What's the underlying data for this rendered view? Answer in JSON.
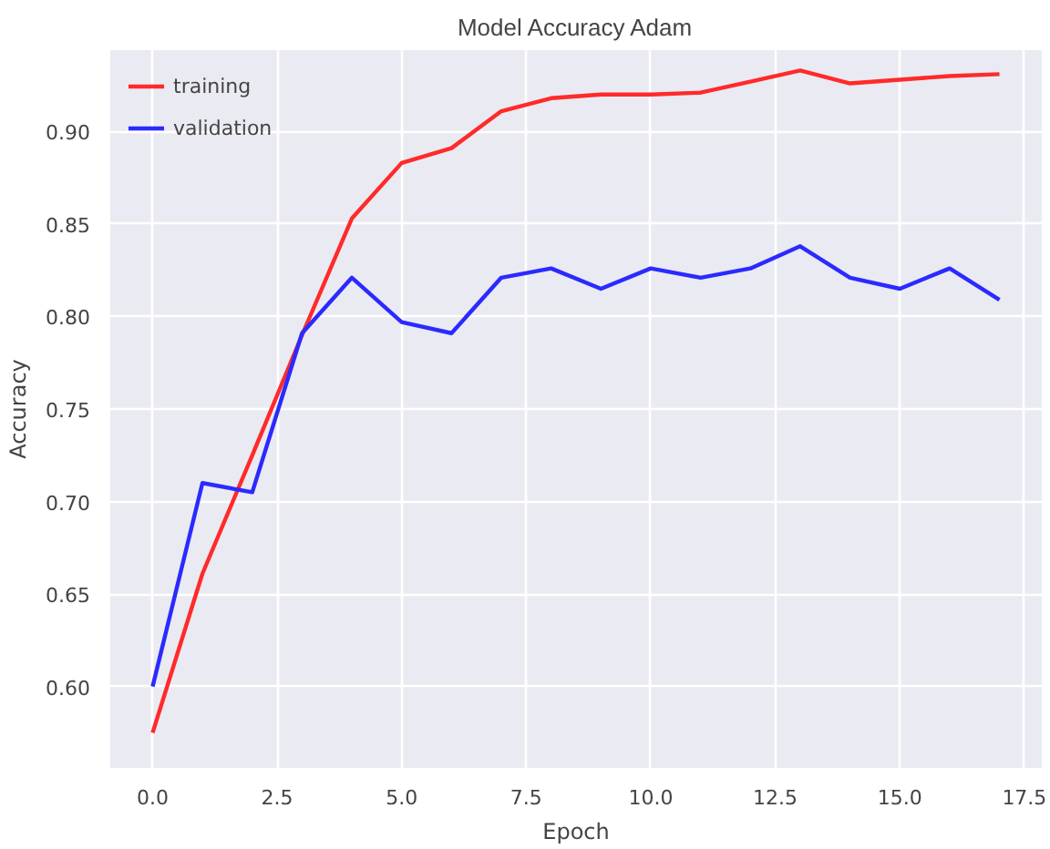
{
  "chart_data": {
    "type": "line",
    "title": "Model Accuracy Adam",
    "xlabel": "Epoch",
    "ylabel": "Accuracy",
    "x": [
      0,
      1,
      2,
      3,
      4,
      5,
      6,
      7,
      8,
      9,
      10,
      11,
      12,
      13,
      14,
      15,
      16,
      17
    ],
    "series": [
      {
        "name": "training",
        "color": "#ff2a2a",
        "values": [
          0.575,
          0.661,
          0.725,
          0.79,
          0.853,
          0.883,
          0.891,
          0.911,
          0.918,
          0.92,
          0.92,
          0.921,
          0.927,
          0.933,
          0.926,
          0.928,
          0.93,
          0.931
        ]
      },
      {
        "name": "validation",
        "color": "#2a2aff",
        "values": [
          0.6,
          0.71,
          0.705,
          0.791,
          0.821,
          0.797,
          0.791,
          0.821,
          0.826,
          0.815,
          0.826,
          0.821,
          0.826,
          0.838,
          0.821,
          0.815,
          0.826,
          0.809
        ]
      }
    ],
    "xlim": [
      -0.85,
      17.85
    ],
    "ylim": [
      0.556,
      0.944
    ],
    "xticks": [
      {
        "value": 0,
        "label": "0.0"
      },
      2.5,
      {
        "value": 5,
        "label": "5.0"
      },
      7.5,
      {
        "value": 10,
        "label": "10.0"
      },
      12.5,
      {
        "value": 15,
        "label": "15.0"
      },
      17.5
    ],
    "yticks": [
      {
        "value": 0.6,
        "label": "0.60"
      },
      0.65,
      {
        "value": 0.7,
        "label": "0.70"
      },
      0.75,
      {
        "value": 0.8,
        "label": "0.80"
      },
      0.85,
      {
        "value": 0.9,
        "label": "0.90"
      }
    ],
    "grid": true,
    "legend": "top left",
    "marker": "none",
    "line_style": "solid"
  }
}
